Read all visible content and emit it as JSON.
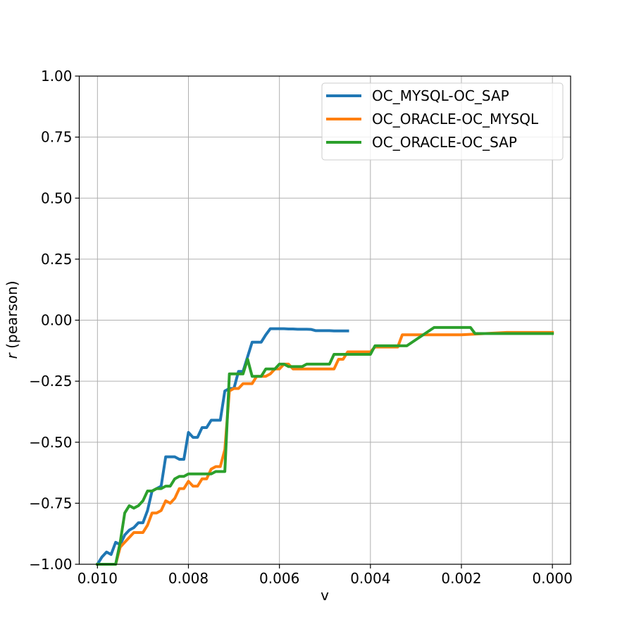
{
  "chart_data": {
    "type": "line",
    "title": "",
    "xlabel": "v",
    "ylabel_prefix": "r",
    "ylabel_suffix": " (pearson)",
    "xlim": [
      0.0104,
      -0.0004
    ],
    "ylim": [
      -1.0,
      1.0
    ],
    "x_ticks": [
      0.01,
      0.008,
      0.006,
      0.004,
      0.002,
      0.0
    ],
    "x_tick_labels": [
      "0.010",
      "0.008",
      "0.006",
      "0.004",
      "0.002",
      "0.000"
    ],
    "y_ticks": [
      -1.0,
      -0.75,
      -0.5,
      -0.25,
      0.0,
      0.25,
      0.5,
      0.75,
      1.0
    ],
    "y_tick_labels": [
      "−1.00",
      "−0.75",
      "−0.50",
      "−0.25",
      "0.00",
      "0.25",
      "0.50",
      "0.75",
      "1.00"
    ],
    "grid": true,
    "legend_position": "top-right",
    "series": [
      {
        "name": "OC_MYSQL-OC_SAP",
        "color": "#1f77b4",
        "x": [
          0.01,
          0.0099,
          0.0098,
          0.0097,
          0.0096,
          0.0095,
          0.0094,
          0.0093,
          0.0092,
          0.0091,
          0.009,
          0.0089,
          0.0088,
          0.0087,
          0.0086,
          0.0085,
          0.0084,
          0.0083,
          0.0082,
          0.0081,
          0.008,
          0.0079,
          0.0078,
          0.0077,
          0.0076,
          0.0075,
          0.0074,
          0.0073,
          0.0072,
          0.0071,
          0.007,
          0.0069,
          0.0068,
          0.0067,
          0.0066,
          0.0065,
          0.0064,
          0.0063,
          0.0062,
          0.0061,
          0.006,
          0.0059,
          0.0058,
          0.0057,
          0.0056,
          0.0055,
          0.0054,
          0.0053,
          0.0052,
          0.0051,
          0.005,
          0.0049,
          0.0048,
          0.0047,
          0.0046,
          0.0045
        ],
        "y": [
          -1.0,
          -0.97,
          -0.95,
          -0.96,
          -0.91,
          -0.92,
          -0.88,
          -0.86,
          -0.85,
          -0.83,
          -0.83,
          -0.78,
          -0.7,
          -0.69,
          -0.68,
          -0.56,
          -0.56,
          -0.56,
          -0.57,
          -0.57,
          -0.46,
          -0.48,
          -0.48,
          -0.44,
          -0.44,
          -0.41,
          -0.41,
          -0.41,
          -0.29,
          -0.28,
          -0.28,
          -0.21,
          -0.21,
          -0.15,
          -0.09,
          -0.09,
          -0.09,
          -0.06,
          -0.035,
          -0.035,
          -0.035,
          -0.035,
          -0.036,
          -0.036,
          -0.037,
          -0.037,
          -0.037,
          -0.038,
          -0.043,
          -0.043,
          -0.043,
          -0.043,
          -0.044,
          -0.044,
          -0.044,
          -0.044
        ]
      },
      {
        "name": "OC_ORACLE-OC_MYSQL",
        "color": "#ff7f0e",
        "x": [
          0.01,
          0.0099,
          0.0098,
          0.0097,
          0.0096,
          0.0095,
          0.0094,
          0.0093,
          0.0092,
          0.0091,
          0.009,
          0.0089,
          0.0088,
          0.0087,
          0.0086,
          0.0085,
          0.0084,
          0.0083,
          0.0082,
          0.0081,
          0.008,
          0.0079,
          0.0078,
          0.0077,
          0.0076,
          0.0075,
          0.0074,
          0.0073,
          0.0072,
          0.0071,
          0.007,
          0.0069,
          0.0068,
          0.0067,
          0.0066,
          0.0065,
          0.0064,
          0.0063,
          0.0062,
          0.0061,
          0.006,
          0.0059,
          0.0058,
          0.0057,
          0.0056,
          0.0055,
          0.0054,
          0.0053,
          0.0052,
          0.0051,
          0.005,
          0.0049,
          0.0048,
          0.0047,
          0.0046,
          0.0045,
          0.0044,
          0.0043,
          0.0042,
          0.0041,
          0.004,
          0.0039,
          0.0038,
          0.0037,
          0.0036,
          0.0035,
          0.0034,
          0.0033,
          0.0032,
          0.0031,
          0.003,
          0.002,
          0.001,
          0.0
        ],
        "y": [
          -1.0,
          -1.0,
          -1.0,
          -1.0,
          -1.0,
          -0.93,
          -0.91,
          -0.89,
          -0.87,
          -0.87,
          -0.87,
          -0.84,
          -0.79,
          -0.79,
          -0.78,
          -0.74,
          -0.75,
          -0.73,
          -0.69,
          -0.69,
          -0.66,
          -0.68,
          -0.68,
          -0.65,
          -0.65,
          -0.61,
          -0.6,
          -0.6,
          -0.53,
          -0.29,
          -0.28,
          -0.28,
          -0.26,
          -0.26,
          -0.26,
          -0.23,
          -0.23,
          -0.23,
          -0.22,
          -0.2,
          -0.2,
          -0.18,
          -0.18,
          -0.2,
          -0.2,
          -0.2,
          -0.2,
          -0.2,
          -0.2,
          -0.2,
          -0.2,
          -0.2,
          -0.2,
          -0.16,
          -0.16,
          -0.13,
          -0.13,
          -0.13,
          -0.13,
          -0.13,
          -0.13,
          -0.11,
          -0.11,
          -0.11,
          -0.11,
          -0.11,
          -0.11,
          -0.06,
          -0.06,
          -0.06,
          -0.06,
          -0.06,
          -0.05,
          -0.05
        ]
      },
      {
        "name": "OC_ORACLE-OC_SAP",
        "color": "#2ca02c",
        "x": [
          0.01,
          0.0099,
          0.0098,
          0.0097,
          0.0096,
          0.0095,
          0.0094,
          0.0093,
          0.0092,
          0.0091,
          0.009,
          0.0089,
          0.0088,
          0.0087,
          0.0086,
          0.0085,
          0.0084,
          0.0083,
          0.0082,
          0.0081,
          0.008,
          0.0079,
          0.0078,
          0.0077,
          0.0076,
          0.0075,
          0.0074,
          0.0073,
          0.0072,
          0.0071,
          0.007,
          0.0069,
          0.0068,
          0.0067,
          0.0066,
          0.0065,
          0.0064,
          0.0063,
          0.0062,
          0.0061,
          0.006,
          0.0059,
          0.0058,
          0.0057,
          0.0056,
          0.0055,
          0.0054,
          0.0053,
          0.0052,
          0.0051,
          0.005,
          0.0049,
          0.0048,
          0.0047,
          0.0046,
          0.0045,
          0.0044,
          0.0043,
          0.0042,
          0.0041,
          0.004,
          0.0039,
          0.0038,
          0.0037,
          0.0036,
          0.0035,
          0.0034,
          0.0033,
          0.0032,
          0.0026,
          0.0018,
          0.0017,
          0.001,
          0.0
        ],
        "y": [
          -1.0,
          -1.0,
          -1.0,
          -1.0,
          -1.0,
          -0.91,
          -0.79,
          -0.76,
          -0.77,
          -0.76,
          -0.74,
          -0.7,
          -0.7,
          -0.69,
          -0.69,
          -0.68,
          -0.68,
          -0.65,
          -0.64,
          -0.64,
          -0.63,
          -0.63,
          -0.63,
          -0.63,
          -0.63,
          -0.63,
          -0.62,
          -0.62,
          -0.62,
          -0.22,
          -0.22,
          -0.22,
          -0.22,
          -0.16,
          -0.23,
          -0.23,
          -0.23,
          -0.2,
          -0.2,
          -0.2,
          -0.18,
          -0.18,
          -0.19,
          -0.19,
          -0.19,
          -0.19,
          -0.18,
          -0.18,
          -0.18,
          -0.18,
          -0.18,
          -0.18,
          -0.14,
          -0.14,
          -0.14,
          -0.14,
          -0.14,
          -0.14,
          -0.14,
          -0.14,
          -0.14,
          -0.105,
          -0.105,
          -0.105,
          -0.105,
          -0.105,
          -0.105,
          -0.105,
          -0.105,
          -0.03,
          -0.03,
          -0.055,
          -0.055,
          -0.055
        ]
      }
    ]
  }
}
